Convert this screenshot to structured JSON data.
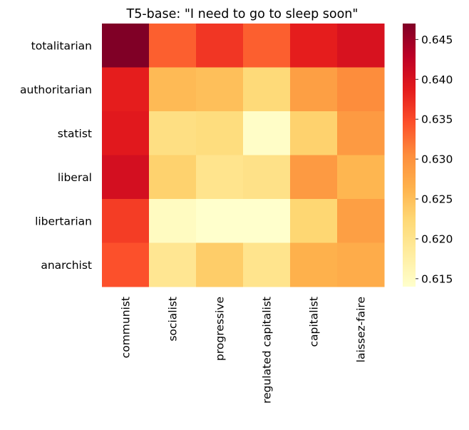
{
  "chart_data": {
    "type": "heatmap",
    "title": "T5-base: \"I need to go to sleep soon\"",
    "x_categories": [
      "communist",
      "socialist",
      "progressive",
      "regulated capitalist",
      "capitalist",
      "laissez-faire"
    ],
    "y_categories": [
      "totalitarian",
      "authoritarian",
      "statist",
      "liberal",
      "libertarian",
      "anarchist"
    ],
    "values": [
      [
        0.647,
        0.6335,
        0.6365,
        0.6335,
        0.6385,
        0.64
      ],
      [
        0.6385,
        0.6255,
        0.625,
        0.622,
        0.6285,
        0.6305
      ],
      [
        0.639,
        0.621,
        0.6215,
        0.6145,
        0.623,
        0.629
      ],
      [
        0.6405,
        0.623,
        0.62,
        0.6205,
        0.629,
        0.626
      ],
      [
        0.636,
        0.615,
        0.614,
        0.614,
        0.6225,
        0.6285
      ],
      [
        0.6345,
        0.6195,
        0.6235,
        0.62,
        0.6265,
        0.627
      ]
    ],
    "colorbar": {
      "min": 0.614,
      "max": 0.647,
      "ticks": [
        "0.615",
        "0.620",
        "0.625",
        "0.630",
        "0.635",
        "0.640",
        "0.645"
      ],
      "colormap": "YlOrRd",
      "stops": [
        "#ffffcc",
        "#ffeda0",
        "#fed976",
        "#feb24c",
        "#fd8d3c",
        "#fc4e2a",
        "#e31a1c",
        "#bd0026",
        "#800026"
      ]
    },
    "grid": false,
    "legend": "colorbar-right"
  }
}
